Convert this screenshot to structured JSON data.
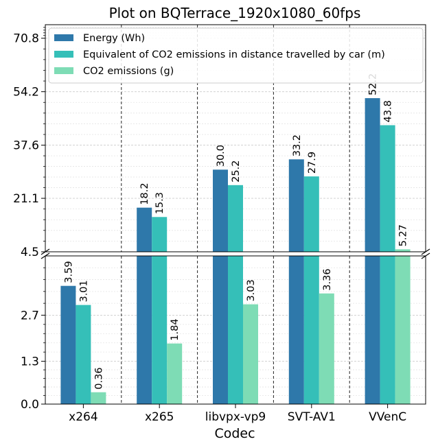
{
  "chart_data": {
    "type": "bar",
    "title": "Plot on BQTerrace_1920x1080_60fps",
    "xlabel": "Codec",
    "ylabel": "",
    "categories": [
      "x264",
      "x265",
      "libvpx-vp9",
      "SVT-AV1",
      "VVenC"
    ],
    "series": [
      {
        "name": "Energy (Wh)",
        "color": "#2e78aa",
        "values": [
          3.59,
          18.2,
          30.0,
          33.2,
          52.2
        ],
        "labels": [
          "3.59",
          "18.2",
          "30.0",
          "33.2",
          "52.2"
        ]
      },
      {
        "name": "Equivalent of CO2 emissions in distance travelled by car (m)",
        "color": "#35bfb8",
        "values": [
          3.01,
          15.3,
          25.2,
          27.9,
          43.8
        ],
        "labels": [
          "3.01",
          "15.3",
          "25.2",
          "27.9",
          "43.8"
        ]
      },
      {
        "name": "CO2 emissions (g)",
        "color": "#7edcb5",
        "values": [
          0.36,
          1.84,
          3.03,
          3.36,
          5.27
        ],
        "labels": [
          "0.36",
          "1.84",
          "3.03",
          "3.36",
          "5.27"
        ]
      }
    ],
    "axis_break": true,
    "lower_ylim": [
      0,
      4.5
    ],
    "lower_yticks": [
      "0.0",
      "1.3",
      "2.7",
      "4.5"
    ],
    "upper_ylim": [
      4.5,
      75
    ],
    "upper_yticks": [
      "4.5",
      "21.1",
      "37.6",
      "54.2",
      "70.8"
    ],
    "grid": true,
    "legend_position": "top-left"
  }
}
